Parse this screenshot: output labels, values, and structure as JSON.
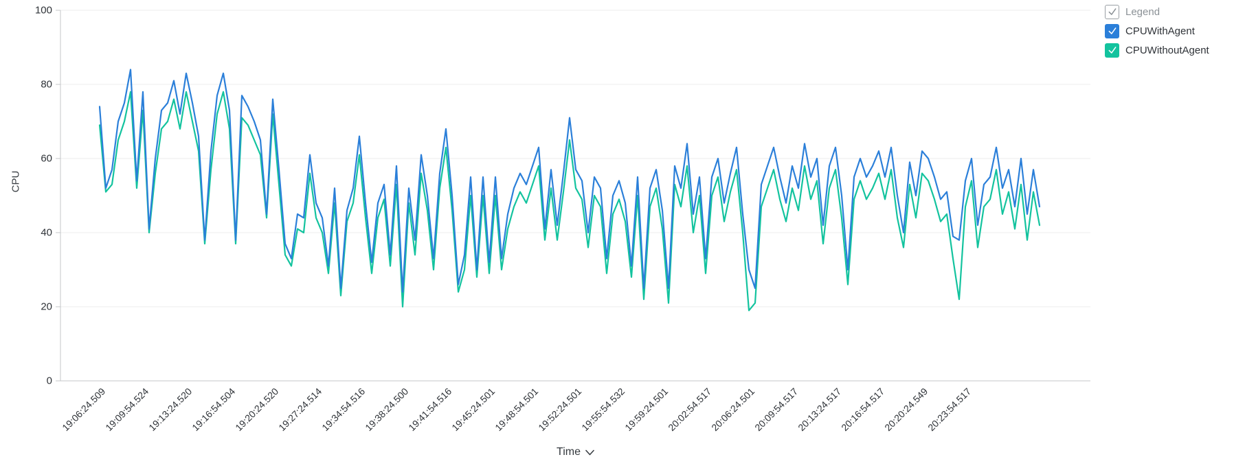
{
  "chart_data": {
    "type": "line",
    "xlabel": "Time",
    "ylabel": "CPU",
    "ylim": [
      0,
      100
    ],
    "y_ticks": [
      0,
      20,
      40,
      60,
      80,
      100
    ],
    "grid": true,
    "legend_position": "top-right",
    "label_every": 7,
    "x_tick_labels": [
      "19:06:24.509",
      "19:09:54.524",
      "19:13:24.520",
      "19:16:54.504",
      "19:20:24.520",
      "19:27:24.514",
      "19:34:54.516",
      "19:38:24.500",
      "19:41:54.516",
      "19:45:24.501",
      "19:48:54.501",
      "19:52:24.501",
      "19:55:54.532",
      "19:59:24.501",
      "20:02:54.517",
      "20:06:24.501",
      "20:09:54.517",
      "20:13:24.517",
      "20:16:54.517",
      "20:20:24.549",
      "20:23:54.517"
    ],
    "series": [
      {
        "name": "CPUWithAgent",
        "color": "#2b7fd9",
        "checked": true,
        "values": [
          74,
          52,
          57,
          70,
          75,
          84,
          54,
          78,
          41,
          60,
          73,
          75,
          81,
          72,
          83,
          75,
          66,
          38,
          62,
          77,
          83,
          73,
          38,
          77,
          74,
          70,
          65,
          45,
          76,
          57,
          37,
          33,
          45,
          44,
          61,
          48,
          44,
          31,
          52,
          25,
          46,
          52,
          66,
          48,
          32,
          48,
          53,
          34,
          58,
          24,
          52,
          38,
          61,
          50,
          33,
          56,
          68,
          50,
          26,
          34,
          55,
          30,
          55,
          32,
          55,
          33,
          45,
          52,
          56,
          53,
          58,
          63,
          41,
          57,
          42,
          56,
          71,
          57,
          54,
          40,
          55,
          52,
          33,
          50,
          54,
          48,
          31,
          55,
          25,
          52,
          57,
          46,
          25,
          58,
          52,
          64,
          45,
          55,
          33,
          55,
          60,
          48,
          56,
          63,
          45,
          30,
          25,
          53,
          58,
          63,
          55,
          48,
          58,
          52,
          64,
          55,
          60,
          42,
          58,
          63,
          50,
          30,
          55,
          60,
          55,
          58,
          62,
          55,
          63,
          50,
          40,
          59,
          50,
          62,
          60,
          55,
          49,
          51,
          39,
          38,
          54,
          60,
          42,
          53,
          55,
          63,
          52,
          57,
          47,
          60,
          45,
          57,
          47
        ]
      },
      {
        "name": "CPUWithoutAgent",
        "color": "#13c39e",
        "checked": true,
        "values": [
          69,
          51,
          53,
          65,
          70,
          78,
          52,
          73,
          40,
          56,
          68,
          70,
          76,
          68,
          78,
          70,
          62,
          37,
          57,
          72,
          78,
          68,
          37,
          71,
          69,
          65,
          61,
          44,
          72,
          53,
          34,
          31,
          41,
          40,
          56,
          44,
          40,
          29,
          48,
          23,
          43,
          48,
          61,
          44,
          29,
          44,
          49,
          31,
          53,
          20,
          48,
          34,
          56,
          46,
          30,
          52,
          63,
          46,
          24,
          30,
          50,
          28,
          50,
          29,
          50,
          30,
          41,
          47,
          51,
          48,
          53,
          58,
          38,
          52,
          38,
          51,
          65,
          52,
          49,
          36,
          50,
          47,
          29,
          45,
          49,
          43,
          28,
          50,
          22,
          47,
          52,
          41,
          21,
          53,
          47,
          58,
          40,
          50,
          29,
          50,
          55,
          43,
          51,
          57,
          40,
          19,
          21,
          47,
          52,
          57,
          49,
          43,
          52,
          46,
          58,
          49,
          54,
          37,
          52,
          57,
          44,
          26,
          49,
          54,
          49,
          52,
          56,
          49,
          57,
          44,
          36,
          53,
          44,
          56,
          54,
          49,
          43,
          45,
          33,
          22,
          47,
          54,
          36,
          47,
          49,
          57,
          45,
          51,
          41,
          53,
          38,
          51,
          42
        ]
      }
    ]
  },
  "legend": {
    "master_label": "Legend",
    "master_checked": true
  },
  "colors": {
    "series_with_agent": "#2b7fd9",
    "series_without_agent": "#13c39e",
    "gridline": "#ececee",
    "axis_line": "#c4c7ca",
    "tick_text": "#2f3338",
    "legend_muted_text": "#8b9196"
  }
}
